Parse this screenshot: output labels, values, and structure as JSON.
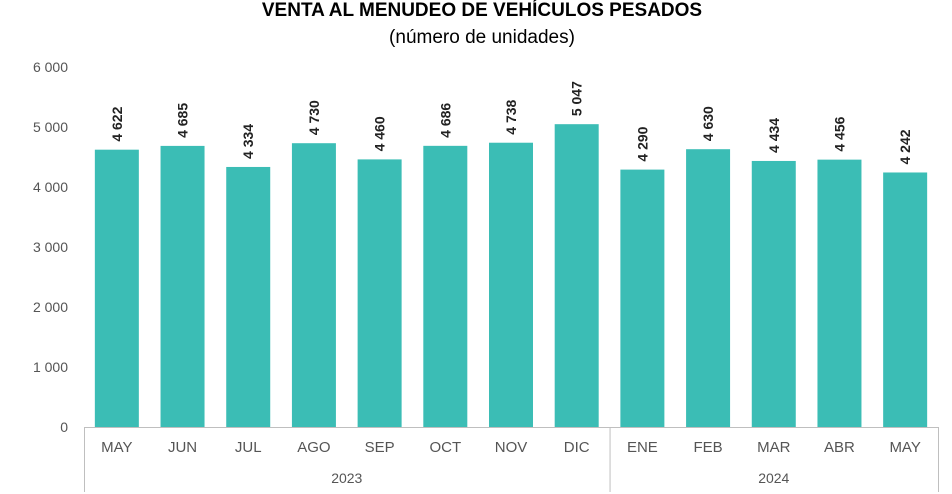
{
  "chart_data": {
    "type": "bar",
    "title": "VENTA AL MENUDEO DE VEHÍCULOS PESADOS",
    "subtitle": "(número de unidades)",
    "categories": [
      "MAY",
      "JUN",
      "JUL",
      "AGO",
      "SEP",
      "OCT",
      "NOV",
      "DIC",
      "ENE",
      "FEB",
      "MAR",
      "ABR",
      "MAY"
    ],
    "values": [
      4622,
      4685,
      4334,
      4730,
      4460,
      4686,
      4738,
      5047,
      4290,
      4630,
      4434,
      4456,
      4242
    ],
    "data_labels": [
      "4 622",
      "4 685",
      "4 334",
      "4 730",
      "4 460",
      "4 686",
      "4 738",
      "5 047",
      "4 290",
      "4 630",
      "4 434",
      "4 456",
      "4 242"
    ],
    "groups": [
      {
        "label": "2023",
        "start": 0,
        "end": 7
      },
      {
        "label": "2024",
        "start": 8,
        "end": 12
      }
    ],
    "ylim": [
      0,
      6000
    ],
    "yticks": [
      0,
      1000,
      2000,
      3000,
      4000,
      5000,
      6000
    ],
    "ytick_labels": [
      "0",
      "1 000",
      "2 000",
      "3 000",
      "4 000",
      "5 000",
      "6 000"
    ],
    "grid": false,
    "bar_color": "#3bbdb5",
    "xlabel": "",
    "ylabel": ""
  }
}
